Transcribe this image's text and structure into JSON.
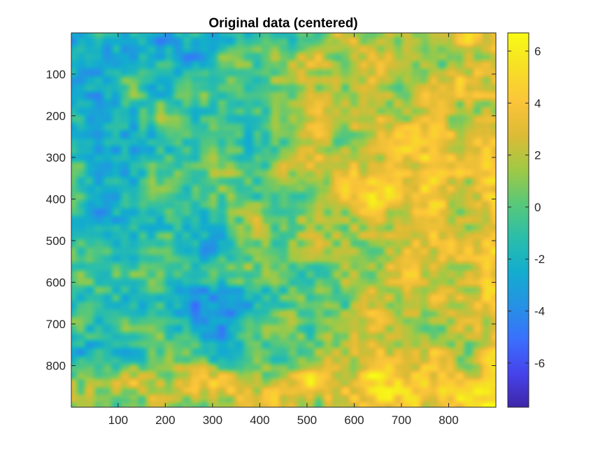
{
  "chart_data": {
    "type": "heatmap",
    "title": "Original data (centered)",
    "xlabel": "",
    "ylabel": "",
    "xlim": [
      1,
      900
    ],
    "ylim": [
      1,
      900
    ],
    "y_direction": "reverse",
    "x_ticks": [
      100,
      200,
      300,
      400,
      500,
      600,
      700,
      800
    ],
    "y_ticks": [
      100,
      200,
      300,
      400,
      500,
      600,
      700,
      800
    ],
    "colormap": "parula",
    "colorbar": {
      "limits": [
        -7.7,
        6.7
      ],
      "ticks": [
        -6,
        -4,
        -2,
        0,
        2,
        4,
        6
      ]
    },
    "grid": false,
    "description_of_field": "smooth noisy scalar field; blue (negative) on left/lower-center, yellow-orange (positive) on right and bottom edge",
    "colors": {
      "parula_stops": [
        "#3e26a8",
        "#4643ec",
        "#3a70fd",
        "#2592e4",
        "#13adce",
        "#2bbeaa",
        "#5ac878",
        "#a1c945",
        "#ddbb35",
        "#fcc539",
        "#f6e025",
        "#f9fb15"
      ],
      "axis": "#262626",
      "background": "#ffffff"
    }
  }
}
